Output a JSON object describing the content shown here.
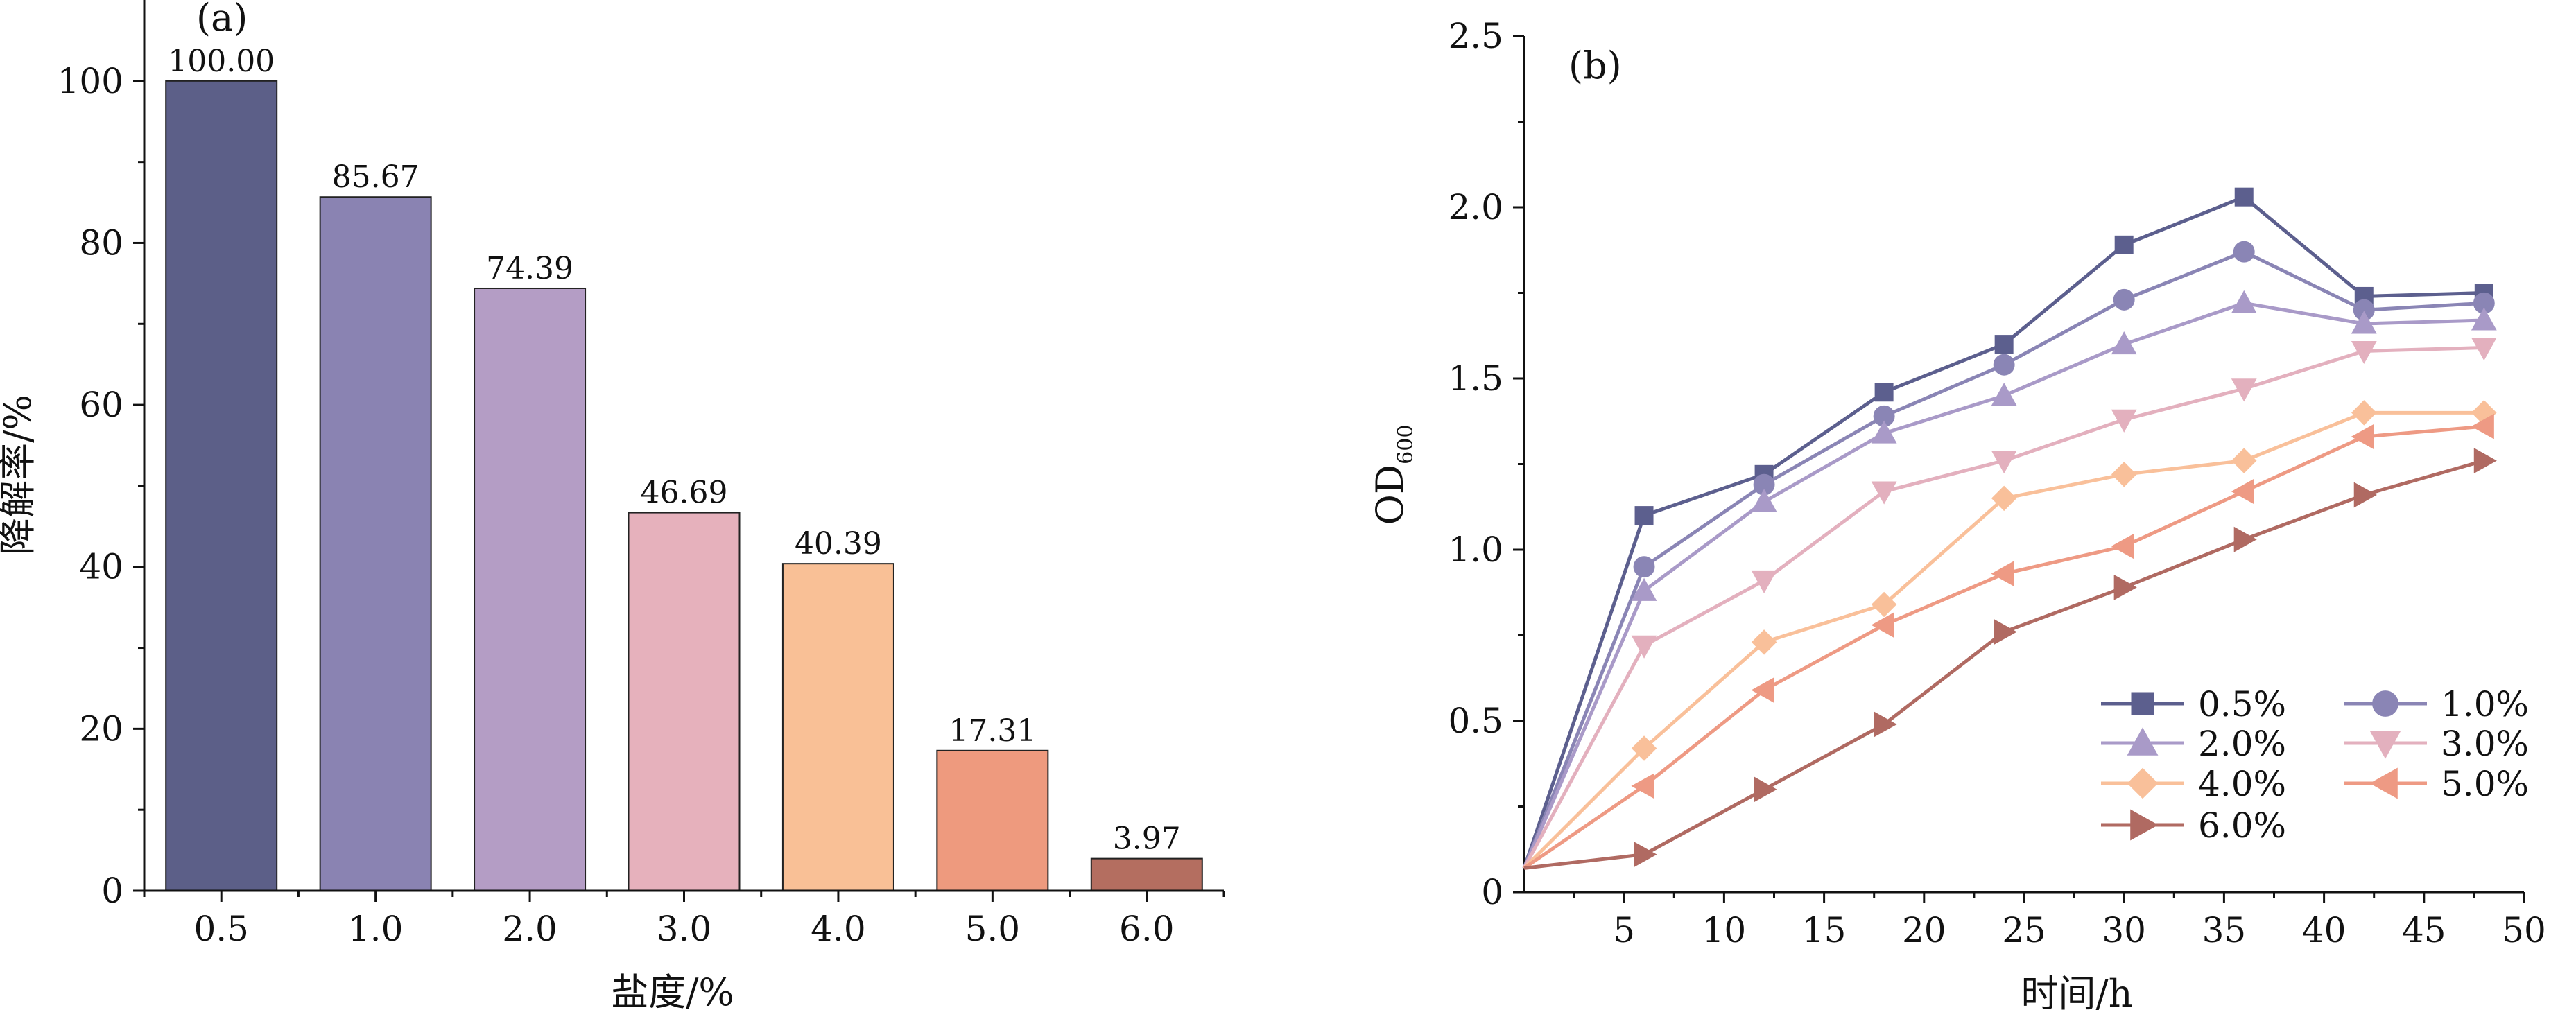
{
  "chart_data": [
    {
      "type": "bar",
      "panel_label": "(a)",
      "xlabel": "盐度/%",
      "ylabel": "降解率/%",
      "ylim": [
        0,
        110
      ],
      "yticks": [
        0,
        20,
        40,
        60,
        80,
        100
      ],
      "categories": [
        "0.5",
        "1.0",
        "2.0",
        "3.0",
        "4.0",
        "5.0",
        "6.0"
      ],
      "values": [
        100.0,
        85.67,
        74.39,
        46.69,
        40.39,
        17.31,
        3.97
      ],
      "value_labels": [
        "100.00",
        "85.67",
        "74.39",
        "46.69",
        "40.39",
        "17.31",
        "3.97"
      ],
      "colors": [
        "#5c5f88",
        "#8a83b2",
        "#b49dc5",
        "#e6b1bc",
        "#f9c096",
        "#ee9a7e",
        "#b46e60"
      ],
      "grid": false
    },
    {
      "type": "line",
      "panel_label": "(b)",
      "xlabel": "时间/h",
      "ylabel": "OD",
      "ylabel_sub": "600",
      "xlim": [
        0,
        50
      ],
      "ylim": [
        0,
        2.5
      ],
      "xticks": [
        5,
        10,
        15,
        20,
        25,
        30,
        35,
        40,
        45,
        50
      ],
      "yticks": [
        0,
        0.5,
        1.0,
        1.5,
        2.0,
        2.5
      ],
      "ytick_labels": [
        "0",
        "0.5",
        "1.0",
        "1.5",
        "2.0",
        "2.5"
      ],
      "x": [
        0,
        6,
        12,
        18,
        24,
        30,
        36,
        42,
        48
      ],
      "grid": false,
      "legend_position": "lower-right",
      "series": [
        {
          "name": "0.5%",
          "marker": "square",
          "color": "#5c5f8e",
          "values": [
            0.07,
            1.1,
            1.22,
            1.46,
            1.6,
            1.89,
            2.03,
            1.74,
            1.75
          ]
        },
        {
          "name": "1.0%",
          "marker": "circle",
          "color": "#8a85b5",
          "values": [
            0.07,
            0.95,
            1.19,
            1.39,
            1.54,
            1.73,
            1.87,
            1.7,
            1.72
          ]
        },
        {
          "name": "2.0%",
          "marker": "triangle-up",
          "color": "#a99ac8",
          "values": [
            0.07,
            0.88,
            1.14,
            1.34,
            1.45,
            1.6,
            1.72,
            1.66,
            1.67
          ]
        },
        {
          "name": "3.0%",
          "marker": "triangle-down",
          "color": "#e3b0be",
          "values": [
            0.07,
            0.72,
            0.91,
            1.17,
            1.26,
            1.38,
            1.47,
            1.58,
            1.59
          ]
        },
        {
          "name": "4.0%",
          "marker": "diamond",
          "color": "#f9c09a",
          "values": [
            0.07,
            0.42,
            0.73,
            0.84,
            1.15,
            1.22,
            1.26,
            1.4,
            1.4
          ]
        },
        {
          "name": "5.0%",
          "marker": "triangle-left",
          "color": "#ee9a84",
          "values": [
            0.07,
            0.31,
            0.59,
            0.78,
            0.93,
            1.01,
            1.17,
            1.33,
            1.36
          ]
        },
        {
          "name": "6.0%",
          "marker": "triangle-right",
          "color": "#b06a62",
          "values": [
            0.07,
            0.11,
            0.3,
            0.49,
            0.76,
            0.89,
            1.03,
            1.16,
            1.26
          ]
        }
      ]
    }
  ]
}
